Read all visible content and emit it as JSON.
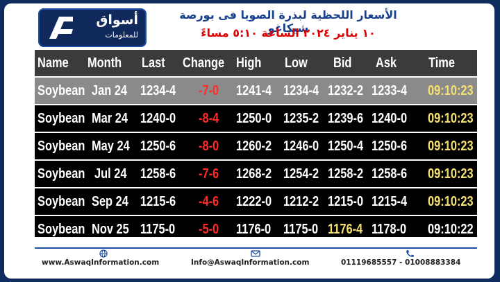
{
  "header": {
    "logo_text": "أسواق",
    "logo_subtext": "للمعلومات",
    "title": "الأسعار اللحظية لبذرة الصويا فى بورصة شيكاغو",
    "subtitle": "١٠ يناير ٢٠٢٤ الساعة ٥:١٠ مساءً"
  },
  "table": {
    "columns": [
      "Name",
      "Month",
      "Last",
      "Change",
      "High",
      "Low",
      "Bid",
      "Ask",
      "Time"
    ],
    "rows": [
      {
        "name": "Soybean",
        "month": "Jan 24",
        "last": "1234-4",
        "change": "-7-0",
        "high": "1241-4",
        "low": "1234-4",
        "bid": "1232-2",
        "ask": "1233-4",
        "time": "09:10:23"
      },
      {
        "name": "Soybean",
        "month": "Mar 24",
        "last": "1240-0",
        "change": "-8-4",
        "high": "1250-0",
        "low": "1235-2",
        "bid": "1239-6",
        "ask": "1240-0",
        "time": "09:10:23"
      },
      {
        "name": "Soybean",
        "month": "May 24",
        "last": "1250-6",
        "change": "-8-0",
        "high": "1260-2",
        "low": "1246-0",
        "bid": "1250-4",
        "ask": "1250-6",
        "time": "09:10:23"
      },
      {
        "name": "Soybean",
        "month": "Jul 24",
        "last": "1258-6",
        "change": "-7-6",
        "high": "1268-2",
        "low": "1254-2",
        "bid": "1258-2",
        "ask": "1258-6",
        "time": "09:10:23"
      },
      {
        "name": "Soybean",
        "month": "Sep 24",
        "last": "1215-6",
        "change": "-4-6",
        "high": "1222-0",
        "low": "1212-2",
        "bid": "1215-0",
        "ask": "1215-4",
        "time": "09:10:23"
      },
      {
        "name": "Soybean",
        "month": "Nov 25",
        "last": "1175-0",
        "change": "-5-0",
        "high": "1176-0",
        "low": "1175-0",
        "bid": "1176-4",
        "ask": "1178-0",
        "time": "09:10:22"
      }
    ]
  },
  "footer": {
    "website": "www.AswaqInformation.com",
    "email": "Info@AswaqInformation.com",
    "phones": "01119685557 - 01008883384"
  },
  "colors": {
    "brand_navy": "#0e2c5e",
    "title_blue": "#17408e",
    "subtitle_red": "#e00000",
    "change_red": "#ff2b2b",
    "time_yellow": "#f5e071"
  }
}
